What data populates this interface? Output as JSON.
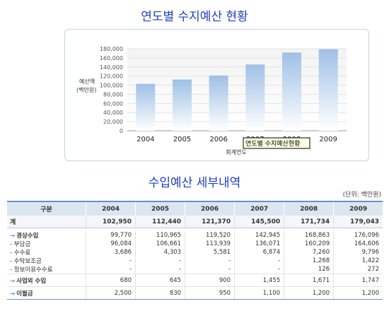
{
  "chart_title": "연도별 수지예산 현황",
  "table_title": "수입예산 세부내역",
  "unit_label": "(단위: 백만원)",
  "chart_data": {
    "type": "bar",
    "title": "연도별 수지예산 현황",
    "categories": [
      "2004",
      "2005",
      "2006",
      "2007",
      "2008",
      "2009"
    ],
    "values": [
      102950,
      112440,
      121370,
      145500,
      171734,
      179043
    ],
    "ylabel": [
      "예산액",
      "(백만원)"
    ],
    "xlabel": "회계연도",
    "ylim": [
      0,
      180000
    ],
    "yticks": [
      "0",
      "20,000",
      "40,000",
      "60,000",
      "80,000",
      "100,000",
      "120,000",
      "140,000",
      "160,000",
      "180,000"
    ],
    "tooltip": "연도별 수지예산현황",
    "bar_top_color": "#9fc0e6",
    "bar_bottom_color": "#ffffff"
  },
  "table": {
    "header": [
      "구분",
      "2004",
      "2005",
      "2006",
      "2007",
      "2008",
      "2009"
    ],
    "rows": [
      {
        "label": "계",
        "values": [
          "102,950",
          "112,440",
          "121,370",
          "145,500",
          "171,734",
          "179,043"
        ]
      },
      {
        "label": "경상수입",
        "arrow": "→",
        "values": [
          "99,770",
          "110,965",
          "119,520",
          "142,945",
          "168,863",
          "176,096"
        ]
      },
      {
        "label": "- 부담금",
        "values": [
          "96,084",
          "106,661",
          "113,939",
          "136,071",
          "160,209",
          "164,606"
        ]
      },
      {
        "label": "- 수수료",
        "values": [
          "3,686",
          "4,303",
          "5,581",
          "6,874",
          "7,260",
          "9,796"
        ]
      },
      {
        "label": "- 수탁보조금",
        "values": [
          "-",
          "-",
          "-",
          "-",
          "1,268",
          "1,422"
        ]
      },
      {
        "label": "- 정보이용수수료",
        "values": [
          "-",
          "-",
          "-",
          "-",
          "126",
          "272"
        ]
      },
      {
        "label": "사업외 수입",
        "arrow": "→",
        "values": [
          "680",
          "645",
          "900",
          "1,455",
          "1,671",
          "1,747"
        ]
      },
      {
        "label": "이월금",
        "arrow": "→",
        "values": [
          "2,500",
          "830",
          "950",
          "1,100",
          "1,200",
          "1,200"
        ]
      }
    ]
  }
}
